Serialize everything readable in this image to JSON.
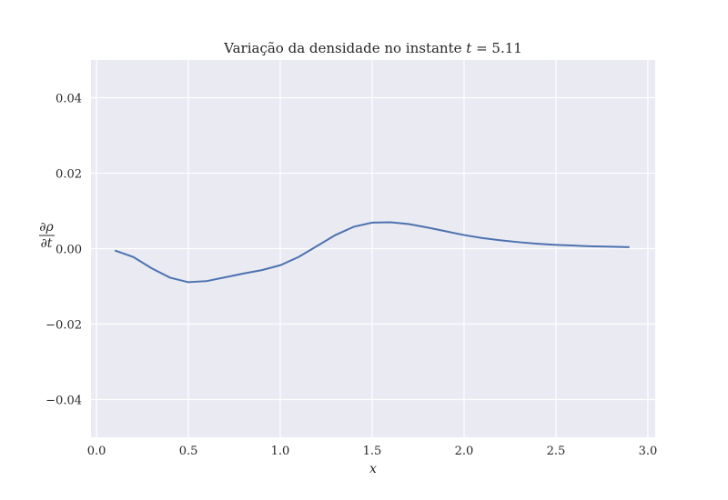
{
  "chart_data": {
    "type": "line",
    "title_prefix": "Variação da densidade no instante ",
    "title_var": "t",
    "title_eq": " = 5.11",
    "xlabel": "x",
    "ylabel_num": "∂ρ",
    "ylabel_den": "∂t",
    "xlim": [
      -0.03,
      3.04
    ],
    "ylim": [
      -0.05,
      0.05
    ],
    "grid": true,
    "x_ticks": [
      {
        "value": 0.0,
        "label": "0.0"
      },
      {
        "value": 0.5,
        "label": "0.5"
      },
      {
        "value": 1.0,
        "label": "1.0"
      },
      {
        "value": 1.5,
        "label": "1.5"
      },
      {
        "value": 2.0,
        "label": "2.0"
      },
      {
        "value": 2.5,
        "label": "2.5"
      },
      {
        "value": 3.0,
        "label": "3.0"
      }
    ],
    "y_ticks": [
      {
        "value": 0.04,
        "label": "0.04"
      },
      {
        "value": 0.02,
        "label": "0.02"
      },
      {
        "value": 0.0,
        "label": "0.00"
      },
      {
        "value": -0.02,
        "label": "−0.02"
      },
      {
        "value": -0.04,
        "label": "−0.04"
      }
    ],
    "series": [
      {
        "color": "#4c72b0",
        "x": [
          0.1,
          0.2,
          0.3,
          0.4,
          0.5,
          0.6,
          0.7,
          0.8,
          0.9,
          1.0,
          1.1,
          1.2,
          1.3,
          1.4,
          1.5,
          1.6,
          1.7,
          1.8,
          1.9,
          2.0,
          2.1,
          2.2,
          2.3,
          2.4,
          2.5,
          2.6,
          2.7,
          2.8,
          2.9
        ],
        "y": [
          -0.0005,
          -0.0022,
          -0.0052,
          -0.0077,
          -0.0089,
          -0.0086,
          -0.0076,
          -0.0066,
          -0.0057,
          -0.0044,
          -0.0022,
          0.0007,
          0.0036,
          0.0058,
          0.0069,
          0.007,
          0.0065,
          0.0056,
          0.0046,
          0.0036,
          0.0028,
          0.0022,
          0.0017,
          0.0013,
          0.001,
          0.0008,
          0.0006,
          0.0005,
          0.0004
        ]
      }
    ],
    "colors": {
      "plot_bg": "#eaeaf2",
      "grid": "#ffffff",
      "line": "#4c72b0"
    }
  }
}
